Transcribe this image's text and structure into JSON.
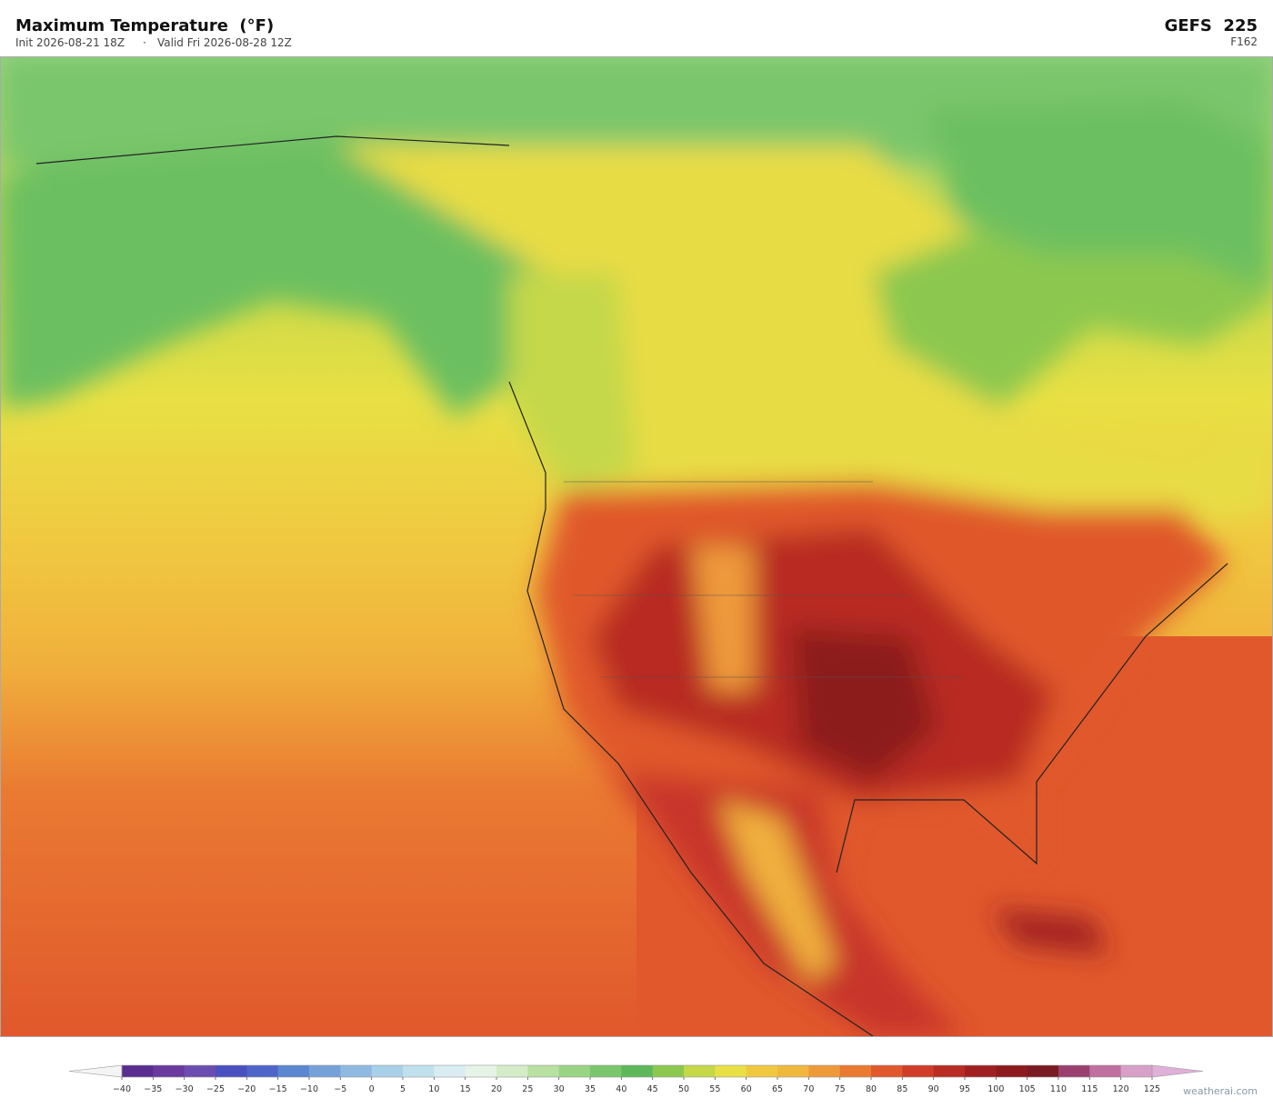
{
  "header": {
    "title": "Maximum Temperature  (°F)",
    "init": "Init 2026-08-21 18Z",
    "separator": "·",
    "valid": "Valid Fri 2026-08-28 12Z",
    "model": "GEFS  225",
    "forecast_hour": "F162"
  },
  "colorbar": {
    "ticks": [
      {
        "value": -40,
        "label": "−40"
      },
      {
        "value": -35,
        "label": "−35"
      },
      {
        "value": -30,
        "label": "−30"
      },
      {
        "value": -25,
        "label": "−25"
      },
      {
        "value": -20,
        "label": "−20"
      },
      {
        "value": -15,
        "label": "−15"
      },
      {
        "value": -10,
        "label": "−10"
      },
      {
        "value": -5,
        "label": "−5"
      },
      0,
      5,
      10,
      15,
      20,
      25,
      30,
      35,
      40,
      45,
      50,
      55,
      60,
      65,
      70,
      75,
      80,
      85,
      90,
      95,
      100,
      105,
      110,
      115,
      120,
      125
    ],
    "colors": [
      "#5a2d91",
      "#6a3a9e",
      "#6b4db0",
      "#4a4fc0",
      "#4d64c8",
      "#5b86d0",
      "#76a0d8",
      "#8fb9e0",
      "#a8d0e8",
      "#c0e0ee",
      "#d8ecf2",
      "#e6f4e8",
      "#d4ecc8",
      "#b8e0a0",
      "#98d484",
      "#7ac66c",
      "#5cb85a",
      "#8cc850",
      "#c4d848",
      "#e8e044",
      "#f0c840",
      "#f0b83c",
      "#ee9a3a",
      "#ea7a32",
      "#e0582c",
      "#d03c28",
      "#b82c24",
      "#a02022",
      "#8c1a1e",
      "#7a1a22",
      "#9a4070",
      "#c070a0",
      "#d8a0c8"
    ],
    "under_color": "#f4f4f4",
    "over_color": "#e0b0d8"
  },
  "watermark": "weatherai.com"
}
